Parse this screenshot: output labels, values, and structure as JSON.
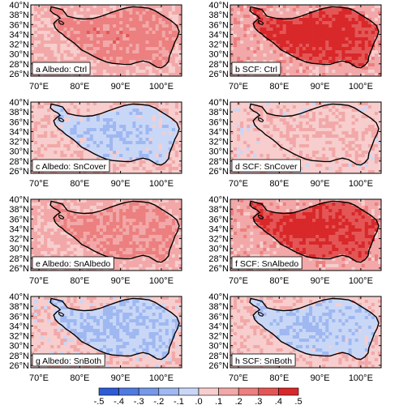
{
  "chart_data": [
    {
      "type": "heatmap",
      "panel": "a",
      "title": "a Albedo: Ctrl",
      "xlim": [
        "70°E",
        "105°E"
      ],
      "ylim": [
        "26°N",
        "40°N"
      ],
      "mean_value": 0.18,
      "inside_plateau_value": 0.22,
      "outside_plateau_value": 0.12,
      "x_ticks": [
        "70°E",
        "80°E",
        "90°E",
        "100°E"
      ],
      "y_ticks": [
        "40°N",
        "38°N",
        "36°N",
        "34°N",
        "32°N",
        "30°N",
        "28°N",
        "26°N"
      ]
    },
    {
      "type": "heatmap",
      "panel": "b",
      "title": "b SCF: Ctrl",
      "xlim": [
        "70°E",
        "105°E"
      ],
      "ylim": [
        "26°N",
        "40°N"
      ],
      "mean_value": 0.3,
      "inside_plateau_value": 0.4,
      "outside_plateau_value": 0.15,
      "x_ticks": [
        "70°E",
        "80°E",
        "90°E",
        "100°E"
      ],
      "y_ticks": [
        "40°N",
        "38°N",
        "36°N",
        "34°N",
        "32°N",
        "30°N",
        "28°N",
        "26°N"
      ]
    },
    {
      "type": "heatmap",
      "panel": "c",
      "title": "c Albedo: SnCover",
      "xlim": [
        "70°E",
        "105°E"
      ],
      "ylim": [
        "26°N",
        "40°N"
      ],
      "mean_value": -0.02,
      "inside_plateau_value": -0.05,
      "outside_plateau_value": 0.08,
      "x_ticks": [
        "70°E",
        "80°E",
        "90°E",
        "100°E"
      ],
      "y_ticks": [
        "40°N",
        "38°N",
        "36°N",
        "34°N",
        "32°N",
        "30°N",
        "28°N",
        "26°N"
      ]
    },
    {
      "type": "heatmap",
      "panel": "d",
      "title": "d SCF: SnCover",
      "xlim": [
        "70°E",
        "105°E"
      ],
      "ylim": [
        "26°N",
        "40°N"
      ],
      "mean_value": 0.05,
      "inside_plateau_value": 0.08,
      "outside_plateau_value": 0.06,
      "x_ticks": [
        "70°E",
        "80°E",
        "90°E",
        "100°E"
      ],
      "y_ticks": [
        "40°N",
        "38°N",
        "36°N",
        "34°N",
        "32°N",
        "30°N",
        "28°N",
        "26°N"
      ]
    },
    {
      "type": "heatmap",
      "panel": "e",
      "title": "e Albedo: SnAlbedo",
      "xlim": [
        "70°E",
        "105°E"
      ],
      "ylim": [
        "26°N",
        "40°N"
      ],
      "mean_value": 0.17,
      "inside_plateau_value": 0.2,
      "outside_plateau_value": 0.12,
      "x_ticks": [
        "70°E",
        "80°E",
        "90°E",
        "100°E"
      ],
      "y_ticks": [
        "40°N",
        "38°N",
        "36°N",
        "34°N",
        "32°N",
        "30°N",
        "28°N",
        "26°N"
      ]
    },
    {
      "type": "heatmap",
      "panel": "f",
      "title": "f SCF: SnAlbedo",
      "xlim": [
        "70°E",
        "105°E"
      ],
      "ylim": [
        "26°N",
        "40°N"
      ],
      "mean_value": 0.28,
      "inside_plateau_value": 0.38,
      "outside_plateau_value": 0.15,
      "x_ticks": [
        "70°E",
        "80°E",
        "90°E",
        "100°E"
      ],
      "y_ticks": [
        "40°N",
        "38°N",
        "36°N",
        "34°N",
        "32°N",
        "30°N",
        "28°N",
        "26°N"
      ]
    },
    {
      "type": "heatmap",
      "panel": "g",
      "title": "g Albedo: SnBoth",
      "xlim": [
        "70°E",
        "105°E"
      ],
      "ylim": [
        "26°N",
        "40°N"
      ],
      "mean_value": -0.04,
      "inside_plateau_value": -0.08,
      "outside_plateau_value": 0.06,
      "x_ticks": [
        "70°E",
        "80°E",
        "90°E",
        "100°E"
      ],
      "y_ticks": [
        "40°N",
        "38°N",
        "36°N",
        "34°N",
        "32°N",
        "30°N",
        "28°N",
        "26°N"
      ]
    },
    {
      "type": "heatmap",
      "panel": "h",
      "title": "h SCF: SnBoth",
      "xlim": [
        "70°E",
        "105°E"
      ],
      "ylim": [
        "26°N",
        "40°N"
      ],
      "mean_value": -0.03,
      "inside_plateau_value": -0.06,
      "outside_plateau_value": 0.07,
      "x_ticks": [
        "70°E",
        "80°E",
        "90°E",
        "100°E"
      ],
      "y_ticks": [
        "40°N",
        "38°N",
        "36°N",
        "34°N",
        "32°N",
        "30°N",
        "28°N",
        "26°N"
      ]
    }
  ],
  "colorbar": {
    "levels": [
      "-.5",
      "-.4",
      "-.3",
      "-.2",
      "-.1",
      ".0",
      ".1",
      ".2",
      ".3",
      ".4",
      ".5"
    ],
    "colors": [
      "#2e5bd6",
      "#4f7ae0",
      "#7598e9",
      "#9fb8f1",
      "#c9d7f7",
      "#f7cdcd",
      "#f2a8a8",
      "#ec7f7f",
      "#e45656",
      "#d8282a"
    ]
  },
  "colors": {
    "boundary": "#000000",
    "background": "#ffffff"
  }
}
